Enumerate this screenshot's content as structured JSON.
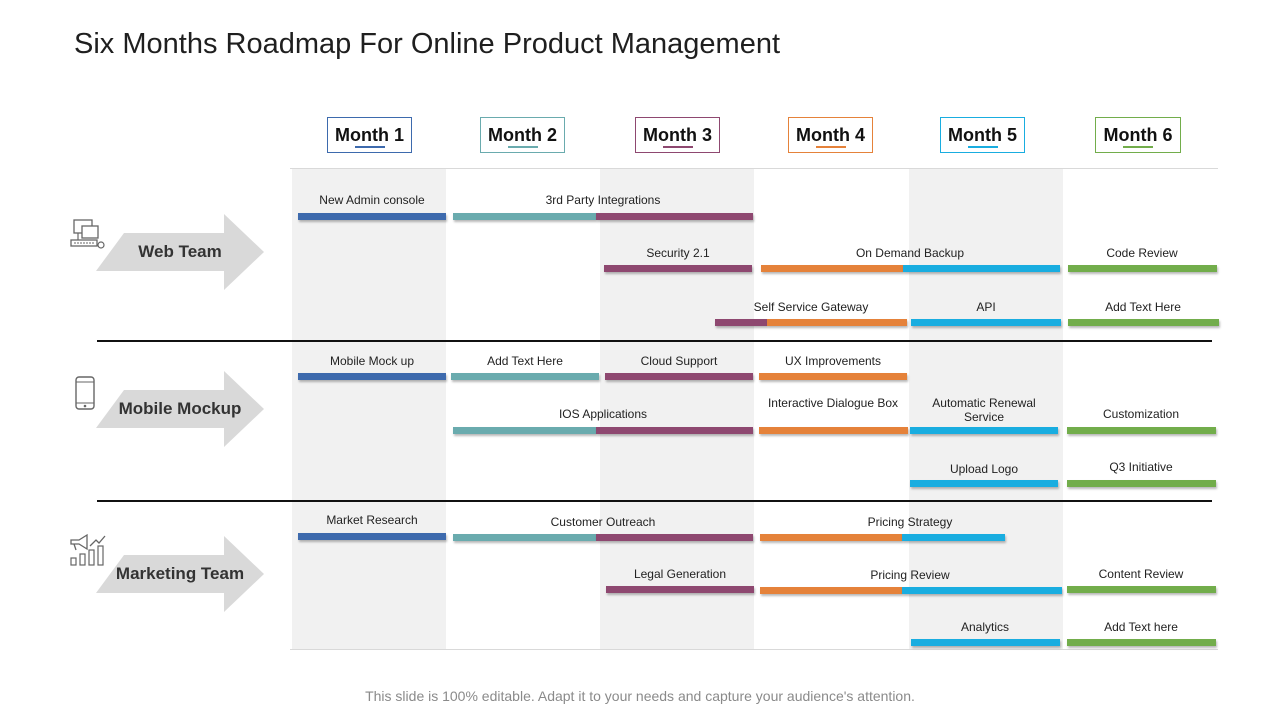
{
  "title": "Six Months Roadmap For Online Product Management",
  "footer": "This slide is 100% editable. Adapt it to your needs and capture your audience's attention.",
  "colors": {
    "m1": "#3d6aad",
    "m2": "#6aabae",
    "m3": "#8e4870",
    "m4": "#e5823a",
    "m5": "#19ade0",
    "m6": "#72ad4b",
    "arrow": "#d9d9d9",
    "band": "#f1f1f1"
  },
  "months": [
    {
      "label": "Month 1",
      "border": "#3d6aad"
    },
    {
      "label": "Month 2",
      "border": "#6aabae"
    },
    {
      "label": "Month 3",
      "border": "#8e4870"
    },
    {
      "label": "Month 4",
      "border": "#e5823a"
    },
    {
      "label": "Month 5",
      "border": "#19ade0"
    },
    {
      "label": "Month 6",
      "border": "#72ad4b"
    }
  ],
  "teams": [
    {
      "name": "Web Team",
      "icon": "computer-network-icon"
    },
    {
      "name": "Mobile Mockup",
      "icon": "mobile-phone-icon"
    },
    {
      "name": "Marketing Team",
      "icon": "megaphone-chart-icon"
    }
  ],
  "tasks": {
    "new_admin_console": "New Admin console",
    "third_party_integrations": "3rd Party Integrations",
    "security": "Security 2.1",
    "on_demand_backup": "On Demand Backup",
    "code_review": "Code Review",
    "self_service_gateway": "Self Service Gateway",
    "api": "API",
    "add_text_here_1": "Add Text Here",
    "mobile_mock_up": "Mobile Mock up",
    "add_text_here_2": "Add Text Here",
    "cloud_support": "Cloud Support",
    "ux_improvements": "UX Improvements",
    "ios_applications": "IOS Applications",
    "interactive_dialogue_box": "Interactive Dialogue Box",
    "automatic_renewal_line1": "Automatic Renewal",
    "automatic_renewal_line2": "Service",
    "customization": "Customization",
    "upload_logo": "Upload Logo",
    "q3_initiative": "Q3 Initiative",
    "market_research": "Market Research",
    "customer_outreach": "Customer Outreach",
    "pricing_strategy": "Pricing Strategy",
    "legal_generation": "Legal Generation",
    "pricing_review": "Pricing Review",
    "content_review": "Content Review",
    "analytics": "Analytics",
    "add_text_here_3": "Add Text here"
  }
}
